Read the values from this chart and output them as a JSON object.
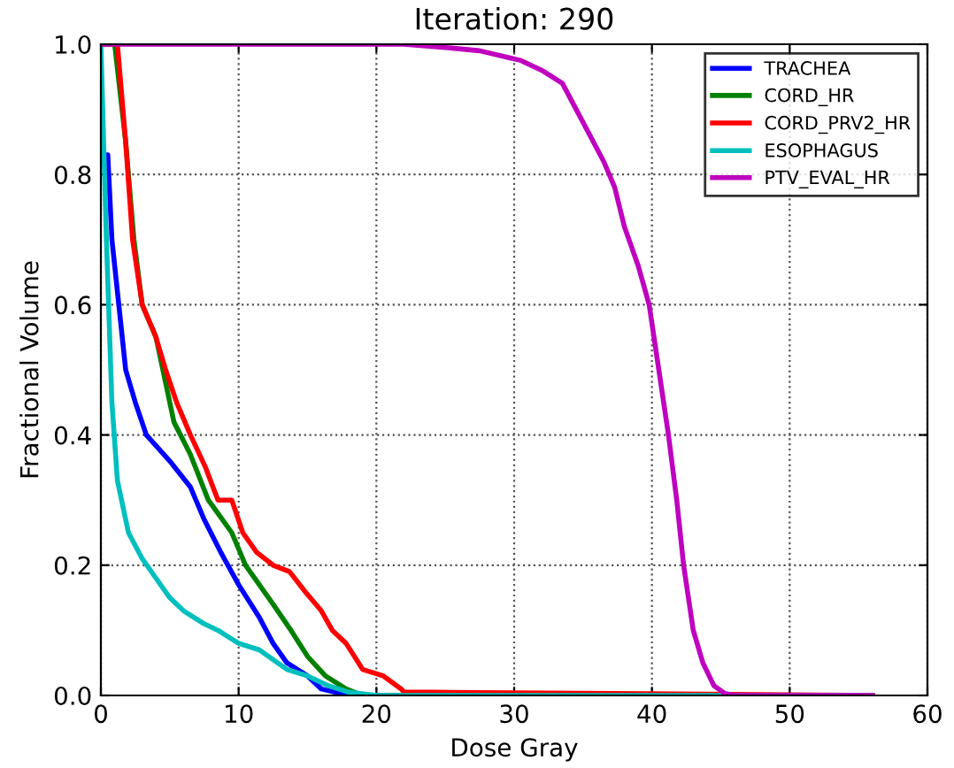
{
  "chart_data": {
    "type": "line",
    "title": "Iteration: 290",
    "xlabel": "Dose Gray",
    "ylabel": "Fractional Volume",
    "xlim": [
      0,
      60
    ],
    "ylim": [
      0,
      1.0
    ],
    "xticks": [
      0,
      10,
      20,
      30,
      40,
      50,
      60
    ],
    "yticks": [
      {
        "value": 0,
        "label": "0.0"
      },
      {
        "value": 0.2,
        "label": "0.2"
      },
      {
        "value": 0.4,
        "label": "0.4"
      },
      {
        "value": 0.6,
        "label": "0.6"
      },
      {
        "value": 0.8,
        "label": "0.8"
      },
      {
        "value": 1.0,
        "label": "1.0"
      }
    ],
    "grid": true,
    "legend": "top right",
    "line_style": "solid",
    "marker": "none",
    "series": [
      {
        "name": "TRACHEA",
        "color": "#0000ff",
        "x": [
          0,
          0.5,
          0.8,
          1.3,
          1.8,
          2.5,
          3.3,
          5,
          6.5,
          7.5,
          8.7,
          10,
          11.5,
          12.5,
          13.5,
          15,
          16,
          18,
          56
        ],
        "values": [
          0.83,
          0.83,
          0.7,
          0.6,
          0.5,
          0.45,
          0.4,
          0.36,
          0.32,
          0.27,
          0.22,
          0.17,
          0.12,
          0.08,
          0.05,
          0.03,
          0.01,
          0,
          0
        ]
      },
      {
        "name": "CORD_HR",
        "color": "#008000",
        "x": [
          0,
          1,
          1.8,
          2.4,
          3,
          4,
          4.5,
          5.3,
          6.5,
          7.8,
          9.5,
          10.5,
          11.5,
          12.5,
          13.8,
          15,
          16.3,
          17.8,
          19,
          56
        ],
        "values": [
          1.0,
          1.0,
          0.85,
          0.7,
          0.6,
          0.55,
          0.5,
          0.42,
          0.37,
          0.3,
          0.25,
          0.2,
          0.17,
          0.14,
          0.1,
          0.06,
          0.03,
          0.01,
          0,
          0
        ]
      },
      {
        "name": "CORD_PRV2_HR",
        "color": "#ff0000",
        "x": [
          0,
          1.2,
          1.8,
          2.3,
          3,
          4,
          4.7,
          5.5,
          6.5,
          7.6,
          8.5,
          9.5,
          10.3,
          11.3,
          12.5,
          13.7,
          14.8,
          16,
          16.8,
          17.8,
          19,
          20.5,
          21.8,
          22,
          24,
          56
        ],
        "values": [
          1.0,
          1.0,
          0.85,
          0.7,
          0.6,
          0.55,
          0.5,
          0.45,
          0.4,
          0.35,
          0.3,
          0.3,
          0.25,
          0.22,
          0.2,
          0.19,
          0.16,
          0.13,
          0.1,
          0.08,
          0.04,
          0.03,
          0.01,
          0.005,
          0.005,
          0
        ]
      },
      {
        "name": "ESOPHAGUS",
        "color": "#00bfbf",
        "x": [
          0,
          0.4,
          0.8,
          1.2,
          2,
          3,
          4,
          5,
          6,
          7.5,
          8.5,
          10,
          11.5,
          12.5,
          13.5,
          15,
          16.5,
          18,
          20,
          56
        ],
        "values": [
          1.0,
          0.7,
          0.45,
          0.33,
          0.25,
          0.21,
          0.18,
          0.15,
          0.13,
          0.11,
          0.1,
          0.08,
          0.07,
          0.055,
          0.04,
          0.03,
          0.015,
          0.005,
          0,
          0
        ]
      },
      {
        "name": "PTV_EVAL_HR",
        "color": "#bf00bf",
        "x": [
          0,
          22,
          25,
          27.5,
          29.5,
          30.5,
          32,
          33.5,
          34.5,
          35.5,
          36.5,
          37.3,
          38,
          39,
          39.8,
          40.5,
          41.2,
          41.8,
          42.3,
          43,
          43.7,
          44.5,
          45.3,
          46,
          56
        ],
        "values": [
          1.0,
          1.0,
          0.995,
          0.99,
          0.98,
          0.975,
          0.96,
          0.94,
          0.9,
          0.86,
          0.82,
          0.78,
          0.72,
          0.66,
          0.6,
          0.5,
          0.4,
          0.3,
          0.2,
          0.1,
          0.05,
          0.015,
          0.003,
          0,
          0
        ]
      }
    ]
  }
}
